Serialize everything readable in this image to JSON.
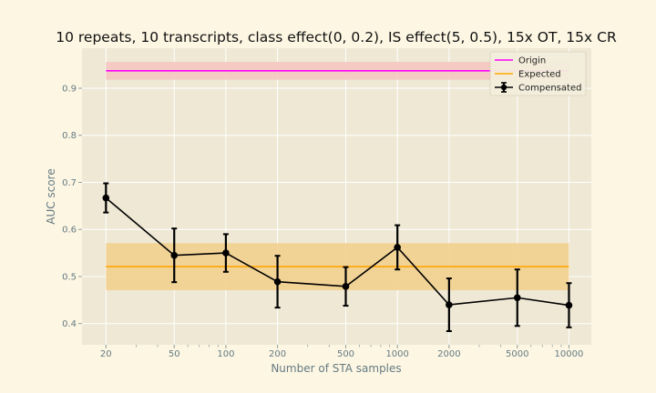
{
  "chart_data": {
    "type": "line",
    "title": "10 repeats, 10 transcripts, class effect(0, 0.2), IS effect(5, 0.5), 15x OT, 15x CR",
    "xlabel": "Number of STA samples",
    "ylabel": "AUC score",
    "xscale": "log",
    "xlim": [
      14.5,
      13500
    ],
    "ylim": [
      0.355,
      0.985
    ],
    "grid": true,
    "legend_position": "top-right",
    "x_ticks": [
      {
        "value": 20,
        "label": "20"
      },
      {
        "value": 50,
        "label": "50"
      },
      {
        "value": 100,
        "label": "100"
      },
      {
        "value": 200,
        "label": "200"
      },
      {
        "value": 500,
        "label": "500"
      },
      {
        "value": 1000,
        "label": "1000"
      },
      {
        "value": 2000,
        "label": "2000"
      },
      {
        "value": 5000,
        "label": "5000"
      },
      {
        "value": 10000,
        "label": "10000"
      }
    ],
    "y_ticks": [
      {
        "value": 0.4,
        "label": "0.4"
      },
      {
        "value": 0.5,
        "label": "0.5"
      },
      {
        "value": 0.6,
        "label": "0.6"
      },
      {
        "value": 0.7,
        "label": "0.7"
      },
      {
        "value": 0.8,
        "label": "0.8"
      },
      {
        "value": 0.9,
        "label": "0.9"
      }
    ],
    "bands": [
      {
        "name": "Origin",
        "x": [
          20,
          10000
        ],
        "center": 0.937,
        "low": 0.918,
        "high": 0.956,
        "color": "#ff00ff",
        "fill": "#f5c6c0"
      },
      {
        "name": "Expected",
        "x": [
          20,
          10000
        ],
        "center": 0.521,
        "low": 0.471,
        "high": 0.571,
        "color": "#ffa500",
        "fill": "#f2d08f"
      }
    ],
    "series": [
      {
        "name": "Compensated",
        "color": "#000000",
        "x": [
          20,
          50,
          100,
          200,
          500,
          1000,
          2000,
          5000,
          10000
        ],
        "y": [
          0.667,
          0.545,
          0.55,
          0.489,
          0.479,
          0.562,
          0.44,
          0.455,
          0.439
        ],
        "err": [
          0.031,
          0.057,
          0.04,
          0.055,
          0.041,
          0.047,
          0.056,
          0.06,
          0.047
        ]
      }
    ],
    "legend": [
      "Origin",
      "Expected",
      "Compensated"
    ]
  },
  "colors": {
    "page_background": "#fdf6e3",
    "plot_background": "#eee8d5",
    "grid": "#ffffff",
    "tick_text": "#657b83"
  }
}
